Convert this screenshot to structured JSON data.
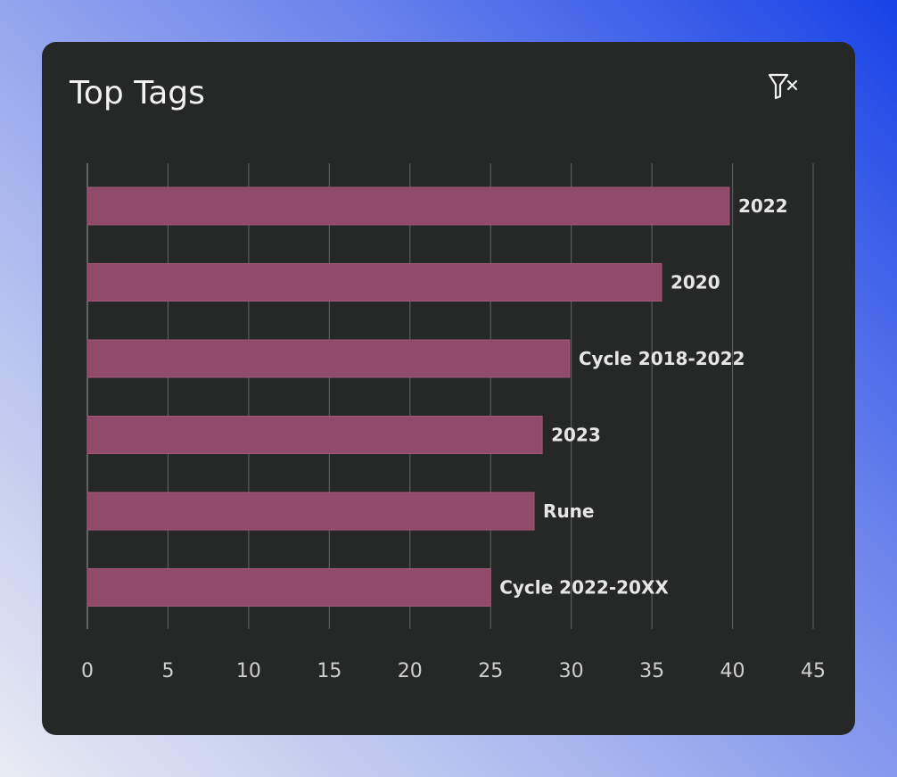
{
  "widget": {
    "title": "Top Tags",
    "clear_filter_icon": "filter-clear-icon"
  },
  "colors": {
    "card_background": "#262727",
    "bar_fill": "#8f4b69",
    "grid_line": "#5a5c5c",
    "label_text": "#e6e6e6",
    "tick_text": "#cfcfcf"
  },
  "chart_data": {
    "type": "bar",
    "orientation": "horizontal",
    "categories": [
      "2022",
      "2020",
      "Cycle 2018-2022",
      "2023",
      "Rune",
      "Cycle 2022-20XX"
    ],
    "values": [
      39.8,
      35.6,
      29.9,
      28.2,
      27.7,
      25.0
    ],
    "xlim": [
      0,
      45
    ],
    "xticks": [
      0,
      5,
      10,
      15,
      20,
      25,
      30,
      35,
      40,
      45
    ],
    "title": "Top Tags",
    "xlabel": "",
    "ylabel": "",
    "grid": true,
    "legend": "none",
    "labels_position": "end-of-bar"
  }
}
